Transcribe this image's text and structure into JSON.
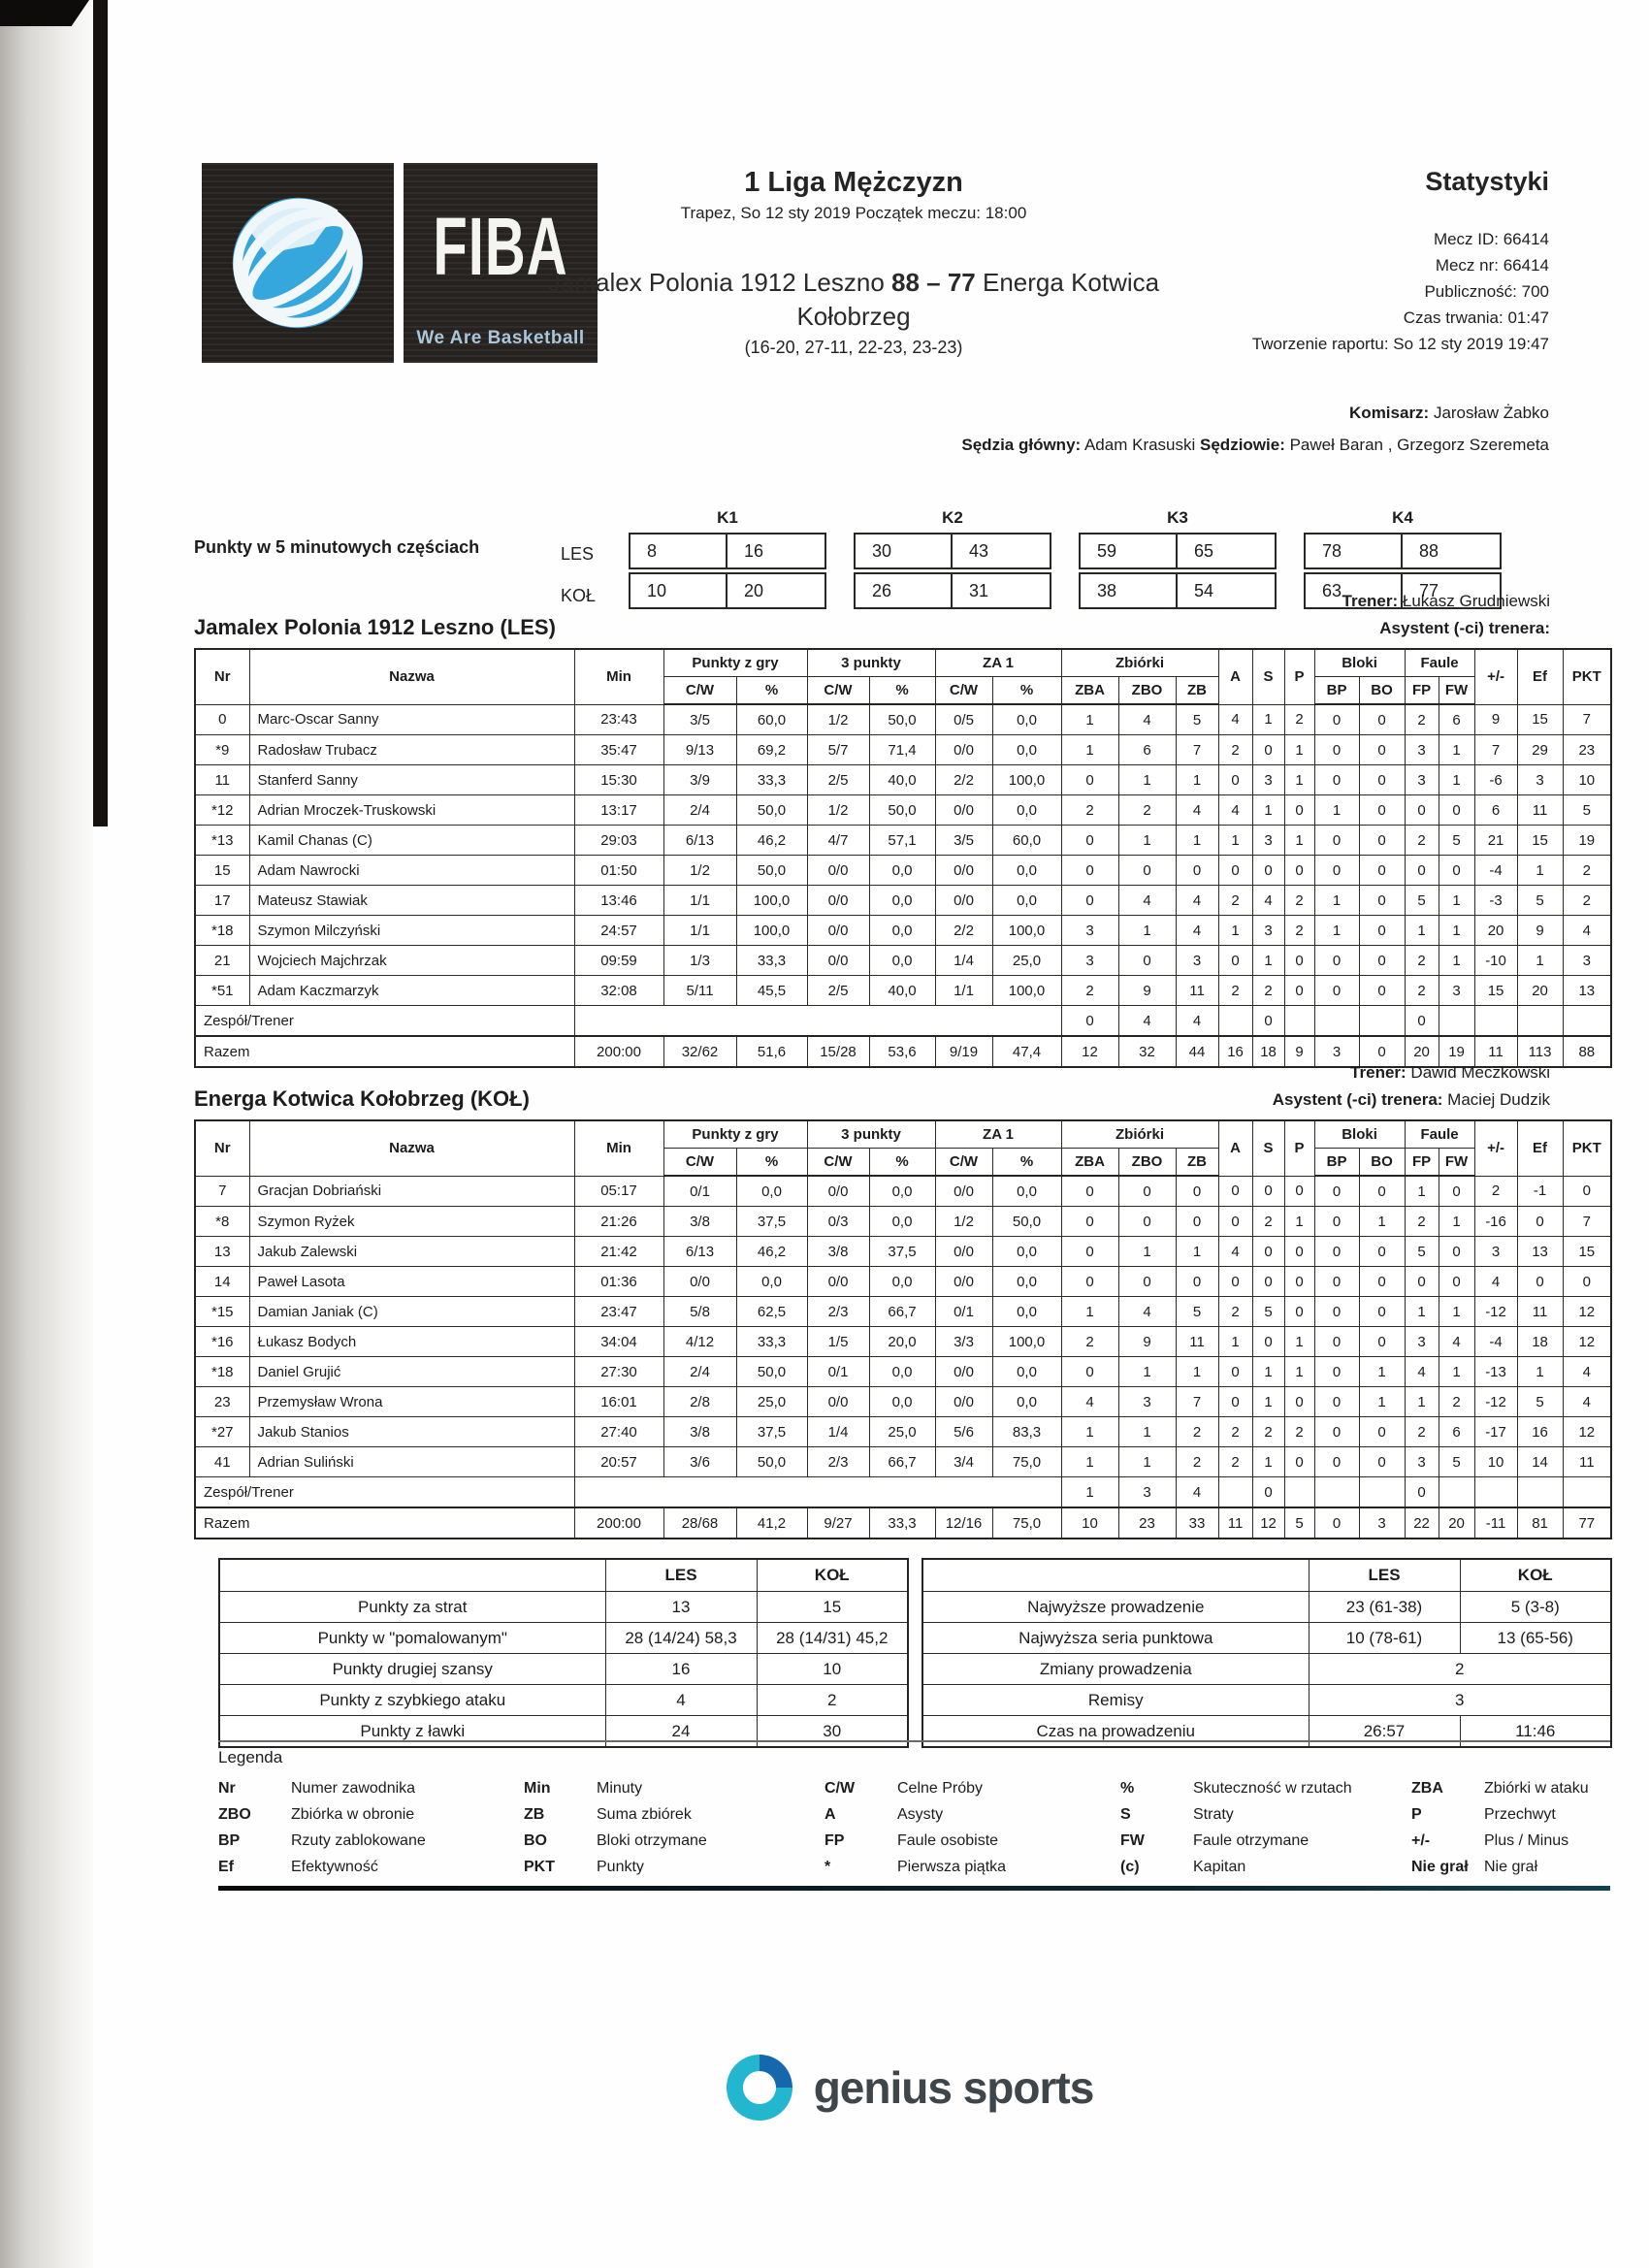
{
  "colors": {
    "fiba_blue": "#35a7dd",
    "genius_teal": "#23b6cf",
    "genius_blue": "#1668ad"
  },
  "fiba_logo": {
    "brand": "FIBA",
    "tagline": "We Are Basketball"
  },
  "header": {
    "league_title": "1 Liga Mężczyzn",
    "match_meta": "Trapez, So 12 sty 2019 Początek meczu: 18:00",
    "home_team": "Jamalex Polonia 1912 Leszno",
    "score": "88 – 77",
    "away_team": "Energa Kotwica Kołobrzeg",
    "period_scores": "(16-20, 27-11, 22-23, 23-23)",
    "stats_title": "Statystyki",
    "meta": [
      "Mecz ID: 66414",
      "Mecz nr: 66414",
      "Publiczność: 700",
      "Czas trwania: 01:47",
      "Tworzenie raportu: So 12 sty 2019 19:47"
    ]
  },
  "officials": {
    "komisarz_label": "Komisarz:",
    "komisarz_name": " Jarosław Żabko",
    "referee_label": "Sędzia główny:",
    "referee_name": " Adam Krasuski ",
    "referees_label": "Sędziowie:",
    "referees_names": " Paweł Baran , Grzegorz Szeremeta"
  },
  "quarters": {
    "label": "Punkty w 5 minutowych częściach",
    "row_labels": [
      "LES",
      "KOŁ"
    ],
    "periods": [
      {
        "name": "K1",
        "les": [
          "8",
          "16"
        ],
        "kol": [
          "10",
          "20"
        ]
      },
      {
        "name": "K2",
        "les": [
          "30",
          "43"
        ],
        "kol": [
          "26",
          "31"
        ]
      },
      {
        "name": "K3",
        "les": [
          "59",
          "65"
        ],
        "kol": [
          "38",
          "54"
        ]
      },
      {
        "name": "K4",
        "les": [
          "78",
          "88"
        ],
        "kol": [
          "63",
          "77"
        ]
      }
    ]
  },
  "stats_header": {
    "nr": "Nr",
    "nazwa": "Nazwa",
    "min": "Min",
    "groups": {
      "fg": "Punkty z gry",
      "tp": "3 punkty",
      "ft": "ZA 1",
      "reb": "Zbiórki",
      "blk": "Bloki",
      "foul": "Faule"
    },
    "cw": "C/W",
    "pct": "%",
    "zba": "ZBA",
    "zbo": "ZBO",
    "zb": "ZB",
    "a": "A",
    "s": "S",
    "p": "P",
    "bp": "BP",
    "bo": "BO",
    "fp": "FP",
    "fw": "FW",
    "pm": "+/-",
    "ef": "Ef",
    "pkt": "PKT"
  },
  "teams": [
    {
      "title": "Jamalex Polonia 1912 Leszno (LES)",
      "trener_label": "Trener:",
      "trener_name": " Łukasz Grudniewski",
      "asystent_label": "Asystent (-ci) trenera:",
      "asystent_name": "",
      "players": [
        [
          "0",
          "Marc-Oscar Sanny",
          "23:43",
          "3/5",
          "60,0",
          "1/2",
          "50,0",
          "0/5",
          "0,0",
          "1",
          "4",
          "5",
          "4",
          "1",
          "2",
          "0",
          "0",
          "2",
          "6",
          "9",
          "15",
          "7"
        ],
        [
          "*9",
          "Radosław Trubacz",
          "35:47",
          "9/13",
          "69,2",
          "5/7",
          "71,4",
          "0/0",
          "0,0",
          "1",
          "6",
          "7",
          "2",
          "0",
          "1",
          "0",
          "0",
          "3",
          "1",
          "7",
          "29",
          "23"
        ],
        [
          "11",
          "Stanferd Sanny",
          "15:30",
          "3/9",
          "33,3",
          "2/5",
          "40,0",
          "2/2",
          "100,0",
          "0",
          "1",
          "1",
          "0",
          "3",
          "1",
          "0",
          "0",
          "3",
          "1",
          "-6",
          "3",
          "10"
        ],
        [
          "*12",
          "Adrian Mroczek-Truskowski",
          "13:17",
          "2/4",
          "50,0",
          "1/2",
          "50,0",
          "0/0",
          "0,0",
          "2",
          "2",
          "4",
          "4",
          "1",
          "0",
          "1",
          "0",
          "0",
          "0",
          "6",
          "11",
          "5"
        ],
        [
          "*13",
          "Kamil Chanas (C)",
          "29:03",
          "6/13",
          "46,2",
          "4/7",
          "57,1",
          "3/5",
          "60,0",
          "0",
          "1",
          "1",
          "1",
          "3",
          "1",
          "0",
          "0",
          "2",
          "5",
          "21",
          "15",
          "19"
        ],
        [
          "15",
          "Adam Nawrocki",
          "01:50",
          "1/2",
          "50,0",
          "0/0",
          "0,0",
          "0/0",
          "0,0",
          "0",
          "0",
          "0",
          "0",
          "0",
          "0",
          "0",
          "0",
          "0",
          "0",
          "-4",
          "1",
          "2"
        ],
        [
          "17",
          "Mateusz Stawiak",
          "13:46",
          "1/1",
          "100,0",
          "0/0",
          "0,0",
          "0/0",
          "0,0",
          "0",
          "4",
          "4",
          "2",
          "4",
          "2",
          "1",
          "0",
          "5",
          "1",
          "-3",
          "5",
          "2"
        ],
        [
          "*18",
          "Szymon Milczyński",
          "24:57",
          "1/1",
          "100,0",
          "0/0",
          "0,0",
          "2/2",
          "100,0",
          "3",
          "1",
          "4",
          "1",
          "3",
          "2",
          "1",
          "0",
          "1",
          "1",
          "20",
          "9",
          "4"
        ],
        [
          "21",
          "Wojciech Majchrzak",
          "09:59",
          "1/3",
          "33,3",
          "0/0",
          "0,0",
          "1/4",
          "25,0",
          "3",
          "0",
          "3",
          "0",
          "1",
          "0",
          "0",
          "0",
          "2",
          "1",
          "-10",
          "1",
          "3"
        ],
        [
          "*51",
          "Adam Kaczmarzyk",
          "32:08",
          "5/11",
          "45,5",
          "2/5",
          "40,0",
          "1/1",
          "100,0",
          "2",
          "9",
          "11",
          "2",
          "2",
          "0",
          "0",
          "0",
          "2",
          "3",
          "15",
          "20",
          "13"
        ]
      ],
      "team_row": {
        "label": "Zespół/Trener",
        "zba": "0",
        "zbo": "4",
        "zb": "4",
        "s": "0",
        "fp": "0"
      },
      "totals_label": "Razem",
      "totals": [
        "200:00",
        "32/62",
        "51,6",
        "15/28",
        "53,6",
        "9/19",
        "47,4",
        "12",
        "32",
        "44",
        "16",
        "18",
        "9",
        "3",
        "0",
        "20",
        "19",
        "11",
        "113",
        "88"
      ]
    },
    {
      "title": "Energa Kotwica Kołobrzeg (KOŁ)",
      "trener_label": "Trener:",
      "trener_name": " Dawid Meczkowski",
      "asystent_label": "Asystent (-ci) trenera:",
      "asystent_name": " Maciej Dudzik",
      "players": [
        [
          "7",
          "Gracjan Dobriański",
          "05:17",
          "0/1",
          "0,0",
          "0/0",
          "0,0",
          "0/0",
          "0,0",
          "0",
          "0",
          "0",
          "0",
          "0",
          "0",
          "0",
          "0",
          "1",
          "0",
          "2",
          "-1",
          "0"
        ],
        [
          "*8",
          "Szymon Ryżek",
          "21:26",
          "3/8",
          "37,5",
          "0/3",
          "0,0",
          "1/2",
          "50,0",
          "0",
          "0",
          "0",
          "0",
          "2",
          "1",
          "0",
          "1",
          "2",
          "1",
          "-16",
          "0",
          "7"
        ],
        [
          "13",
          "Jakub Zalewski",
          "21:42",
          "6/13",
          "46,2",
          "3/8",
          "37,5",
          "0/0",
          "0,0",
          "0",
          "1",
          "1",
          "4",
          "0",
          "0",
          "0",
          "0",
          "5",
          "0",
          "3",
          "13",
          "15"
        ],
        [
          "14",
          "Paweł Lasota",
          "01:36",
          "0/0",
          "0,0",
          "0/0",
          "0,0",
          "0/0",
          "0,0",
          "0",
          "0",
          "0",
          "0",
          "0",
          "0",
          "0",
          "0",
          "0",
          "0",
          "4",
          "0",
          "0"
        ],
        [
          "*15",
          "Damian Janiak (C)",
          "23:47",
          "5/8",
          "62,5",
          "2/3",
          "66,7",
          "0/1",
          "0,0",
          "1",
          "4",
          "5",
          "2",
          "5",
          "0",
          "0",
          "0",
          "1",
          "1",
          "-12",
          "11",
          "12"
        ],
        [
          "*16",
          "Łukasz Bodych",
          "34:04",
          "4/12",
          "33,3",
          "1/5",
          "20,0",
          "3/3",
          "100,0",
          "2",
          "9",
          "11",
          "1",
          "0",
          "1",
          "0",
          "0",
          "3",
          "4",
          "-4",
          "18",
          "12"
        ],
        [
          "*18",
          "Daniel Grujić",
          "27:30",
          "2/4",
          "50,0",
          "0/1",
          "0,0",
          "0/0",
          "0,0",
          "0",
          "1",
          "1",
          "0",
          "1",
          "1",
          "0",
          "1",
          "4",
          "1",
          "-13",
          "1",
          "4"
        ],
        [
          "23",
          "Przemysław Wrona",
          "16:01",
          "2/8",
          "25,0",
          "0/0",
          "0,0",
          "0/0",
          "0,0",
          "4",
          "3",
          "7",
          "0",
          "1",
          "0",
          "0",
          "1",
          "1",
          "2",
          "-12",
          "5",
          "4"
        ],
        [
          "*27",
          "Jakub Stanios",
          "27:40",
          "3/8",
          "37,5",
          "1/4",
          "25,0",
          "5/6",
          "83,3",
          "1",
          "1",
          "2",
          "2",
          "2",
          "2",
          "0",
          "0",
          "2",
          "6",
          "-17",
          "16",
          "12"
        ],
        [
          "41",
          "Adrian Suliński",
          "20:57",
          "3/6",
          "50,0",
          "2/3",
          "66,7",
          "3/4",
          "75,0",
          "1",
          "1",
          "2",
          "2",
          "1",
          "0",
          "0",
          "0",
          "3",
          "5",
          "10",
          "14",
          "11"
        ]
      ],
      "team_row": {
        "label": "Zespół/Trener",
        "zba": "1",
        "zbo": "3",
        "zb": "4",
        "s": "0",
        "fp": "0"
      },
      "totals_label": "Razem",
      "totals": [
        "200:00",
        "28/68",
        "41,2",
        "9/27",
        "33,3",
        "12/16",
        "75,0",
        "10",
        "23",
        "33",
        "11",
        "12",
        "5",
        "0",
        "3",
        "22",
        "20",
        "-11",
        "81",
        "77"
      ]
    }
  ],
  "summary_left": {
    "col_headers": [
      "LES",
      "KOŁ"
    ],
    "rows": [
      {
        "label": "Punkty za strat",
        "les": "13",
        "kol": "15"
      },
      {
        "label": "Punkty w \"pomalowanym\"",
        "les": "28 (14/24) 58,3",
        "kol": "28 (14/31) 45,2"
      },
      {
        "label": "Punkty drugiej szansy",
        "les": "16",
        "kol": "10"
      },
      {
        "label": "Punkty z szybkiego ataku",
        "les": "4",
        "kol": "2"
      },
      {
        "label": "Punkty z ławki",
        "les": "24",
        "kol": "30"
      }
    ]
  },
  "summary_right": {
    "col_headers": [
      "LES",
      "KOŁ"
    ],
    "rows": [
      {
        "label": "Najwyższe prowadzenie",
        "les": "23 (61-38)",
        "kol": "5 (3-8)"
      },
      {
        "label": "Najwyższa seria punktowa",
        "les": "10 (78-61)",
        "kol": "13 (65-56)"
      },
      {
        "label": "Zmiany prowadzenia",
        "span": "2"
      },
      {
        "label": "Remisy",
        "span": "3"
      },
      {
        "label": "Czas na prowadzeniu",
        "les": "26:57",
        "kol": "11:46"
      }
    ]
  },
  "legend": {
    "title": "Legenda",
    "rows": [
      [
        {
          "k": "Nr",
          "v": "Numer zawodnika"
        },
        {
          "k": "Min",
          "v": "Minuty"
        },
        {
          "k": "C/W",
          "v": "Celne Próby"
        },
        {
          "k": "%",
          "v": "Skuteczność w rzutach"
        },
        {
          "k": "ZBA",
          "v": "Zbiórki w ataku"
        }
      ],
      [
        {
          "k": "ZBO",
          "v": "Zbiórka w obronie"
        },
        {
          "k": "ZB",
          "v": "Suma zbiórek"
        },
        {
          "k": "A",
          "v": "Asysty"
        },
        {
          "k": "S",
          "v": "Straty"
        },
        {
          "k": "P",
          "v": "Przechwyt"
        }
      ],
      [
        {
          "k": "BP",
          "v": "Rzuty zablokowane"
        },
        {
          "k": "BO",
          "v": "Bloki otrzymane"
        },
        {
          "k": "FP",
          "v": "Faule osobiste"
        },
        {
          "k": "FW",
          "v": "Faule otrzymane"
        },
        {
          "k": "+/-",
          "v": "Plus / Minus"
        }
      ],
      [
        {
          "k": "Ef",
          "v": "Efektywność"
        },
        {
          "k": "PKT",
          "v": "Punkty"
        },
        {
          "k": "*",
          "v": "Pierwsza piątka"
        },
        {
          "k": "(c)",
          "v": "Kapitan"
        },
        {
          "k": "Nie grał",
          "v": "Nie grał"
        }
      ]
    ]
  },
  "footer": {
    "brand": "genius sports"
  }
}
